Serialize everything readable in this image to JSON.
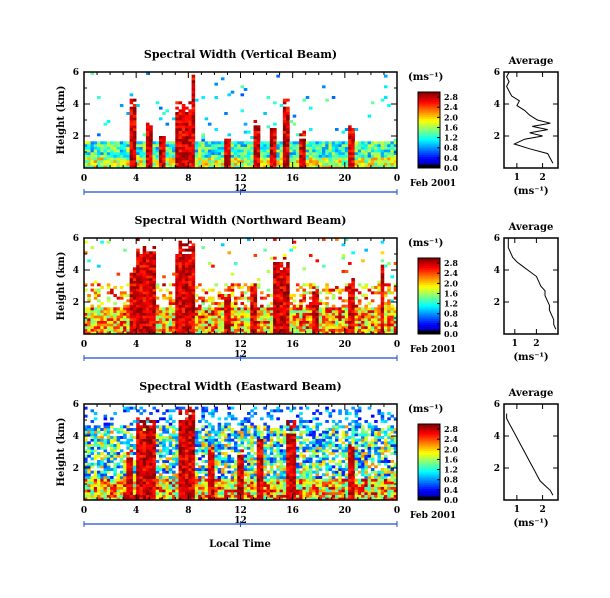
{
  "chart_data": [
    {
      "type": "heatmap",
      "title": "Spectral Width (Vertical Beam)",
      "ylabel": "Height (km)",
      "xticks": [
        "0",
        "4",
        "8",
        "12",
        "16",
        "20",
        "0"
      ],
      "yticks": [
        "2",
        "4",
        "6"
      ],
      "xlim": [
        0,
        24
      ],
      "ylim": [
        0,
        6
      ],
      "date_marker": "12",
      "date_label": "Feb 2001",
      "colorbar": {
        "label": "(ms⁻¹)",
        "ticks": [
          "0.0",
          "0.4",
          "0.8",
          "1.2",
          "1.6",
          "2.0",
          "2.4",
          "2.8"
        ],
        "range": [
          0,
          3.0
        ]
      },
      "bursts": [
        {
          "t": 3.7,
          "top": 4.3,
          "w": 0.5
        },
        {
          "t": 5.0,
          "top": 3.0,
          "w": 0.7
        },
        {
          "t": 6.0,
          "top": 2.2,
          "w": 0.4
        },
        {
          "t": 7.6,
          "top": 4.0,
          "w": 1.4
        },
        {
          "t": 8.4,
          "top": 5.6,
          "w": 0.3
        },
        {
          "t": 11.0,
          "top": 2.0,
          "w": 0.4
        },
        {
          "t": 13.3,
          "top": 2.8,
          "w": 0.5
        },
        {
          "t": 14.5,
          "top": 2.6,
          "w": 0.6
        },
        {
          "t": 15.5,
          "top": 4.2,
          "w": 0.7
        },
        {
          "t": 16.8,
          "top": 2.2,
          "w": 0.5
        },
        {
          "t": 20.5,
          "top": 2.9,
          "w": 0.4
        }
      ],
      "average_profile": {
        "title": "Average",
        "xlabel": "(ms⁻¹)",
        "xticks": [
          "1",
          "2"
        ],
        "yticks": [
          "2",
          "4",
          "6"
        ],
        "xlim": [
          0.5,
          2.6
        ],
        "ylim": [
          0,
          6
        ],
        "heights": [
          0.3,
          0.6,
          0.9,
          1.2,
          1.5,
          1.8,
          2.0,
          2.2,
          2.4,
          2.6,
          2.8,
          3.0,
          3.3,
          3.6,
          3.9,
          4.2,
          4.5,
          4.8,
          5.1,
          5.4,
          5.7,
          6.0
        ],
        "values": [
          2.4,
          2.3,
          2.2,
          1.5,
          0.9,
          1.3,
          2.0,
          1.5,
          2.2,
          1.6,
          2.3,
          1.8,
          1.5,
          1.3,
          1.0,
          1.1,
          0.8,
          0.7,
          0.6,
          0.7,
          0.6,
          0.7
        ]
      }
    },
    {
      "type": "heatmap",
      "title": "Spectral Width (Northward Beam)",
      "ylabel": "Height (km)",
      "xticks": [
        "0",
        "4",
        "8",
        "12",
        "16",
        "20",
        "0"
      ],
      "yticks": [
        "2",
        "4",
        "6"
      ],
      "xlim": [
        0,
        24
      ],
      "ylim": [
        0,
        6
      ],
      "date_marker": "12",
      "date_label": "Feb 2001",
      "colorbar": {
        "label": "(ms⁻¹)",
        "ticks": [
          "0.0",
          "0.4",
          "0.8",
          "1.2",
          "1.6",
          "2.0",
          "2.4",
          "2.8"
        ],
        "range": [
          0,
          3.0
        ]
      },
      "bursts": [
        {
          "t": 3.8,
          "top": 4.3,
          "w": 0.5
        },
        {
          "t": 4.8,
          "top": 5.4,
          "w": 1.6
        },
        {
          "t": 7.8,
          "top": 5.6,
          "w": 1.5
        },
        {
          "t": 11.0,
          "top": 2.5,
          "w": 0.5
        },
        {
          "t": 13.0,
          "top": 3.0,
          "w": 0.6
        },
        {
          "t": 15.2,
          "top": 4.6,
          "w": 1.2
        },
        {
          "t": 17.8,
          "top": 2.8,
          "w": 0.6
        },
        {
          "t": 20.4,
          "top": 3.5,
          "w": 0.5
        },
        {
          "t": 22.8,
          "top": 4.5,
          "w": 0.3
        }
      ],
      "average_profile": {
        "title": "Average",
        "xlabel": "(ms⁻¹)",
        "xticks": [
          "1",
          "2"
        ],
        "yticks": [
          "2",
          "4",
          "6"
        ],
        "xlim": [
          0.5,
          3.0
        ],
        "ylim": [
          0,
          6
        ],
        "heights": [
          0.3,
          0.6,
          0.9,
          1.2,
          1.5,
          1.8,
          2.1,
          2.4,
          2.7,
          3.0,
          3.3,
          3.6,
          3.9,
          4.2,
          4.5,
          4.8,
          5.1,
          5.4,
          5.7,
          6.0
        ],
        "values": [
          2.9,
          2.8,
          2.8,
          2.7,
          2.6,
          2.6,
          2.5,
          2.4,
          2.4,
          2.2,
          2.1,
          2.0,
          1.7,
          1.4,
          1.1,
          0.9,
          0.8,
          0.7,
          0.7,
          0.7
        ]
      }
    },
    {
      "type": "heatmap",
      "title": "Spectral Width (Eastward Beam)",
      "ylabel": "Height (km)",
      "xlabel": "Local Time",
      "xticks": [
        "0",
        "4",
        "8",
        "12",
        "16",
        "20",
        "0"
      ],
      "yticks": [
        "2",
        "4",
        "6"
      ],
      "xlim": [
        0,
        24
      ],
      "ylim": [
        0,
        6
      ],
      "date_marker": "12",
      "date_label": "Feb 2001",
      "colorbar": {
        "label": "(ms⁻¹)",
        "ticks": [
          "0.0",
          "0.4",
          "0.8",
          "1.2",
          "1.6",
          "2.0",
          "2.4",
          "2.8"
        ],
        "range": [
          0,
          3.0
        ]
      },
      "bursts": [
        {
          "t": 3.5,
          "top": 3.0,
          "w": 0.5
        },
        {
          "t": 4.8,
          "top": 5.0,
          "w": 1.4
        },
        {
          "t": 7.8,
          "top": 5.5,
          "w": 1.3
        },
        {
          "t": 9.8,
          "top": 3.2,
          "w": 0.6
        },
        {
          "t": 12.0,
          "top": 3.2,
          "w": 0.6
        },
        {
          "t": 13.5,
          "top": 4.0,
          "w": 0.6
        },
        {
          "t": 15.8,
          "top": 4.5,
          "w": 0.7
        },
        {
          "t": 20.5,
          "top": 3.5,
          "w": 0.5
        }
      ],
      "average_profile": {
        "title": "Average",
        "xlabel": "(ms⁻¹)",
        "xticks": [
          "1",
          "2"
        ],
        "yticks": [
          "2",
          "4",
          "6"
        ],
        "xlim": [
          0.5,
          2.6
        ],
        "ylim": [
          0,
          6
        ],
        "heights": [
          0.3,
          0.6,
          0.9,
          1.2,
          1.5,
          1.8,
          2.1,
          2.4,
          2.7,
          3.0,
          3.3,
          3.6,
          3.9,
          4.2,
          4.5,
          4.8,
          5.1,
          5.4
        ],
        "values": [
          2.4,
          2.3,
          2.1,
          1.9,
          1.8,
          1.7,
          1.6,
          1.5,
          1.4,
          1.3,
          1.2,
          1.1,
          1.0,
          0.9,
          0.8,
          0.7,
          0.6,
          0.6
        ]
      }
    }
  ]
}
